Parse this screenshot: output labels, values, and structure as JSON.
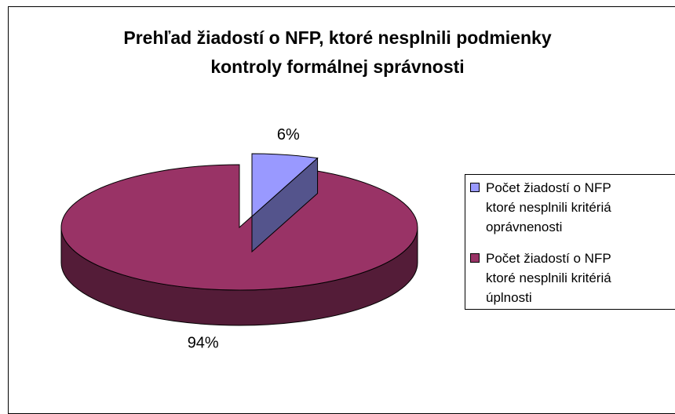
{
  "chart_data": {
    "type": "pie3d",
    "title": "Prehľad žiadostí o NFP, ktoré nesplnili podmienky kontroly formálnej správnosti",
    "categories": [
      "Počet žiadostí o NFP ktoré nesplnili kritériá oprávnenosti",
      "Počet žiadostí o NFP ktoré nesplnili kritériá úplnosti"
    ],
    "values": [
      6,
      94
    ],
    "value_labels": [
      "6%",
      "94%"
    ],
    "colors": [
      "#9999ff",
      "#993366"
    ],
    "legend": "right"
  }
}
